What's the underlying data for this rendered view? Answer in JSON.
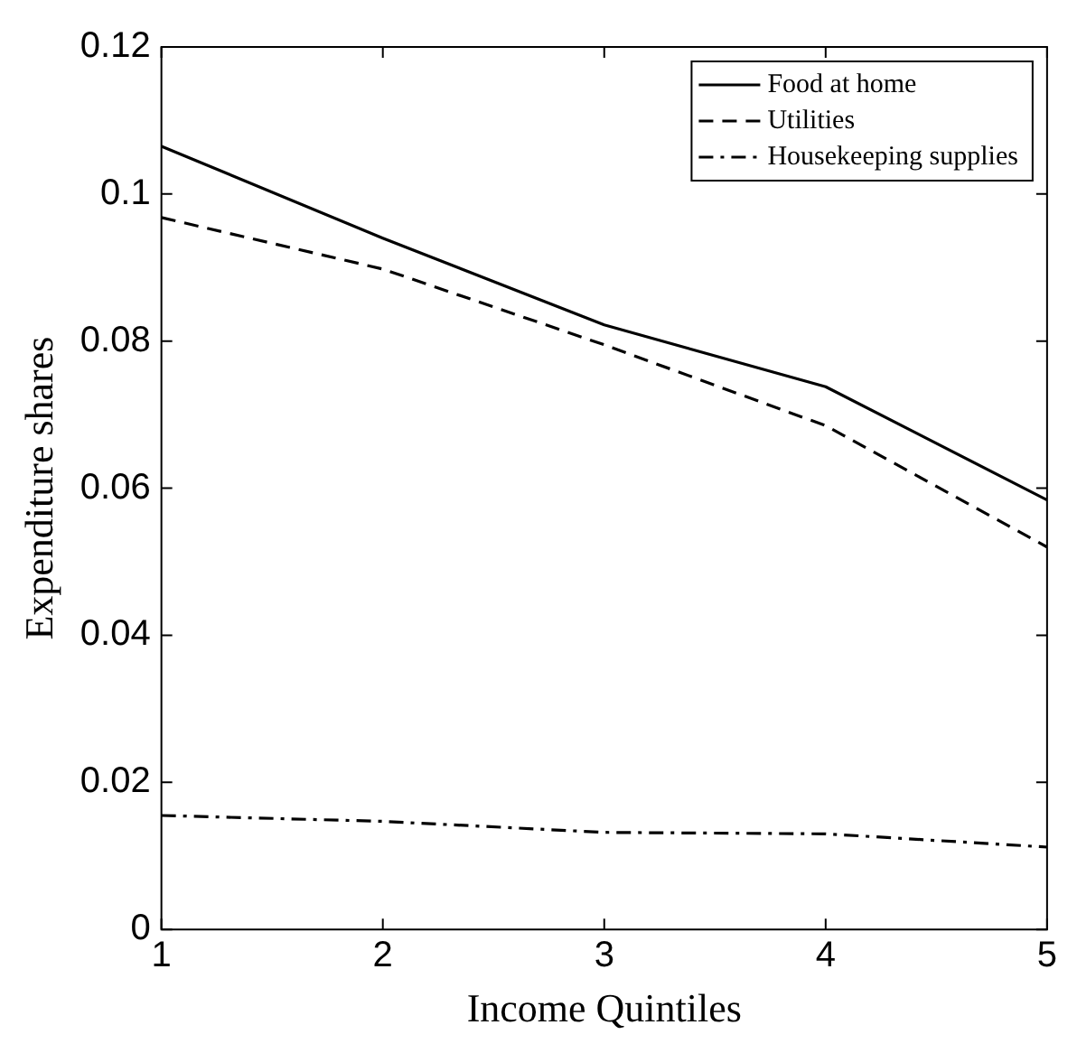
{
  "chart_data": {
    "type": "line",
    "xlabel": "Income Quintiles",
    "ylabel": "Expenditure shares",
    "x": [
      1,
      2,
      3,
      4,
      5
    ],
    "xlim": [
      1,
      5
    ],
    "xticks": [
      1,
      2,
      3,
      4,
      5
    ],
    "ylim": [
      0,
      0.12
    ],
    "yticks": [
      0,
      0.02,
      0.04,
      0.06,
      0.08,
      0.1,
      0.12
    ],
    "grid": false,
    "legend": "top right",
    "marker": "none",
    "series": [
      {
        "name": "Food at home",
        "color": "#000000",
        "line_style": "solid",
        "values": [
          0.1065,
          0.094,
          0.0822,
          0.0738,
          0.0584
        ]
      },
      {
        "name": "Utilities",
        "color": "#000000",
        "line_style": "dashed",
        "values": [
          0.0968,
          0.0898,
          0.0795,
          0.0685,
          0.052
        ]
      },
      {
        "name": "Housekeeping supplies",
        "color": "#000000",
        "line_style": "dashdot",
        "values": [
          0.0155,
          0.0147,
          0.0132,
          0.013,
          0.0112
        ]
      }
    ]
  }
}
